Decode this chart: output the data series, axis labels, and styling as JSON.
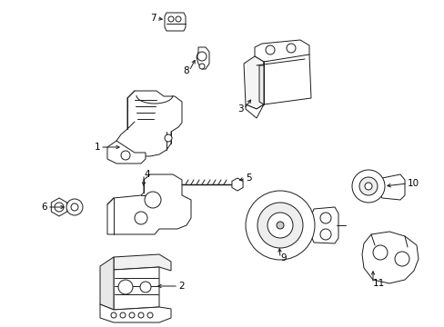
{
  "background_color": "#ffffff",
  "line_color": "#1a1a1a",
  "text_color": "#000000",
  "fig_width": 4.89,
  "fig_height": 3.6,
  "dpi": 100,
  "lw": 0.7,
  "font_size": 7.5
}
